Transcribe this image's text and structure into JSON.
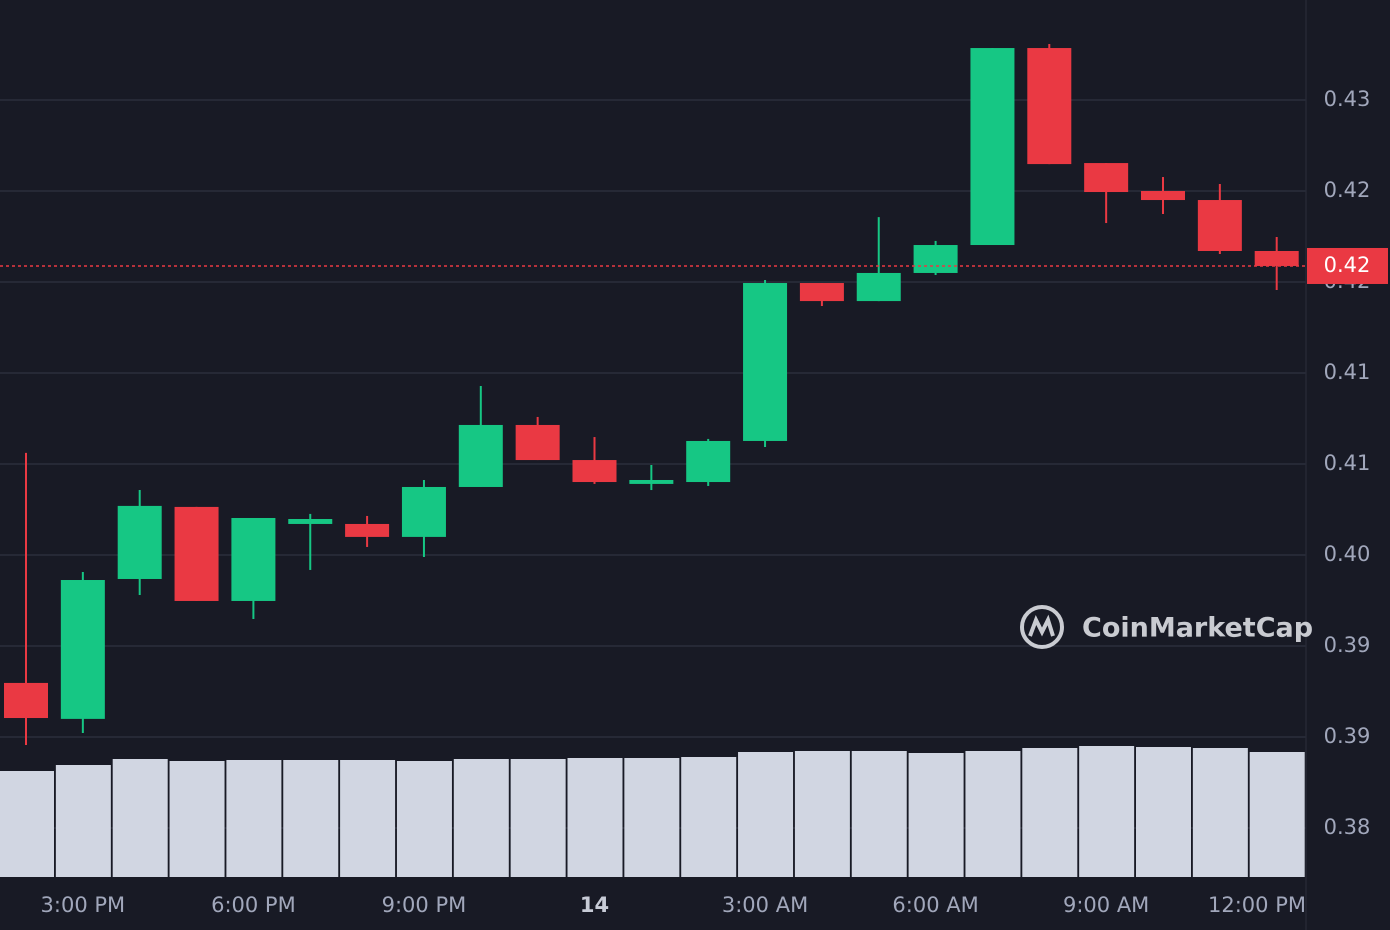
{
  "chart_data": {
    "type": "candlestick",
    "categories": [
      null,
      "3:00 PM",
      null,
      null,
      "6:00 PM",
      null,
      null,
      "9:00 PM",
      null,
      null,
      "14",
      null,
      null,
      "3:00 AM",
      null,
      null,
      "6:00 AM",
      null,
      null,
      "9:00 AM",
      null,
      null,
      "12:00 PM"
    ],
    "open": [
      0.38996,
      0.38749,
      0.3971,
      0.40205,
      0.39559,
      0.40088,
      0.40088,
      0.39999,
      0.40342,
      0.40768,
      0.40527,
      0.40363,
      0.40376,
      0.40658,
      0.41743,
      0.41619,
      0.41812,
      0.42004,
      0.43357,
      0.42567,
      0.42375,
      0.42313,
      0.41963
    ],
    "high": [
      0.40576,
      0.39758,
      0.40321,
      0.40205,
      0.40129,
      0.40157,
      0.40143,
      0.4039,
      0.41036,
      0.40823,
      0.40685,
      0.40493,
      0.40672,
      0.41764,
      0.41743,
      0.42196,
      0.42032,
      0.43357,
      0.43385,
      0.42567,
      0.42471,
      0.42423,
      0.42059
    ],
    "low": [
      0.3857,
      0.38652,
      0.396,
      0.39559,
      0.39435,
      0.39772,
      0.3993,
      0.39861,
      0.40342,
      0.40527,
      0.40363,
      0.40321,
      0.40349,
      0.40617,
      0.41585,
      0.41619,
      0.41798,
      0.42004,
      0.4256,
      0.42155,
      0.42217,
      0.41942,
      0.41695
    ],
    "close": [
      0.38755,
      0.39703,
      0.40212,
      0.39559,
      0.40129,
      0.40122,
      0.39999,
      0.40342,
      0.40768,
      0.40527,
      0.40376,
      0.4039,
      0.40658,
      0.41743,
      0.41619,
      0.41812,
      0.42004,
      0.43357,
      0.4256,
      0.42368,
      0.42313,
      0.41963,
      0.4186
    ],
    "volume": [
      106,
      112,
      118,
      116,
      117,
      117,
      117,
      116,
      118,
      118,
      119,
      119,
      120,
      125,
      126,
      126,
      124,
      126,
      129,
      131,
      130,
      129,
      125
    ],
    "up_color": "#16c784",
    "down_color": "#ea3943",
    "volume_color": "#d1d6e2",
    "ylim": [
      0.37663,
      0.43687
    ],
    "yticks": [
      {
        "value": 0.38,
        "label": "0.38"
      },
      {
        "value": 0.38625,
        "label": "0.39"
      },
      {
        "value": 0.3925,
        "label": "0.39"
      },
      {
        "value": 0.39875,
        "label": "0.40"
      },
      {
        "value": 0.405,
        "label": "0.41"
      },
      {
        "value": 0.41125,
        "label": "0.41"
      },
      {
        "value": 0.4175,
        "label": "0.42"
      },
      {
        "value": 0.42375,
        "label": "0.42"
      },
      {
        "value": 0.43,
        "label": "0.43"
      }
    ],
    "current_price": {
      "value": 0.4186,
      "label": "0.42"
    },
    "grid": true,
    "watermark": "CoinMarketCap"
  }
}
